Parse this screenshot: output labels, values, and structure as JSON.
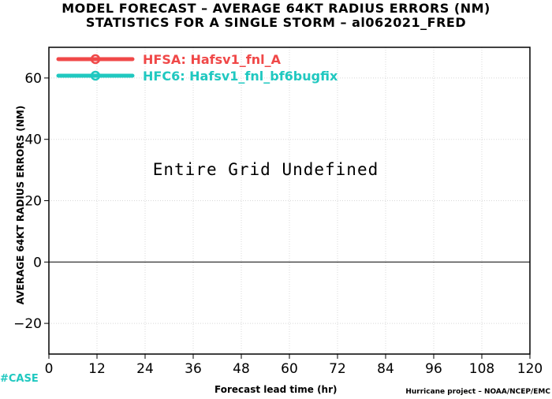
{
  "header": {
    "title_line1": "MODEL FORECAST – AVERAGE 64KT RADIUS ERRORS (NM)",
    "title_line2": "STATISTICS FOR A SINGLE STORM – al062021_FRED"
  },
  "footer": {
    "case_tag": "#CASE",
    "credit": "Hurricane project – NOAA/NCEP/EMC"
  },
  "colors": {
    "hfsa": "#f04848",
    "hfc6": "#20c8c0",
    "grid": "#d8d8d8",
    "case_tag": "#20c8c0"
  },
  "chart_data": {
    "type": "line",
    "title": "MODEL FORECAST – AVERAGE 64KT RADIUS ERRORS (NM)",
    "subtitle": "STATISTICS FOR A SINGLE STORM – al062021_FRED",
    "xlabel": "Forecast lead time (hr)",
    "ylabel": "AVERAGE 64KT RADIUS ERRORS (NM)",
    "x_ticks": [
      0,
      12,
      24,
      36,
      48,
      60,
      72,
      84,
      96,
      108,
      120
    ],
    "y_ticks": [
      -20,
      0,
      20,
      40,
      60
    ],
    "xlim": [
      0,
      120
    ],
    "ylim": [
      -30,
      70
    ],
    "grid": true,
    "legend_position": "top-left",
    "annotation": "Entire Grid Undefined",
    "series": [
      {
        "name": "HFSA: Hafsv1_fnl_A",
        "color": "#f04848",
        "x": [],
        "y": []
      },
      {
        "name": "HFC6: Hafsv1_fnl_bf6bugfix",
        "color": "#20c8c0",
        "x": [],
        "y": []
      }
    ]
  }
}
